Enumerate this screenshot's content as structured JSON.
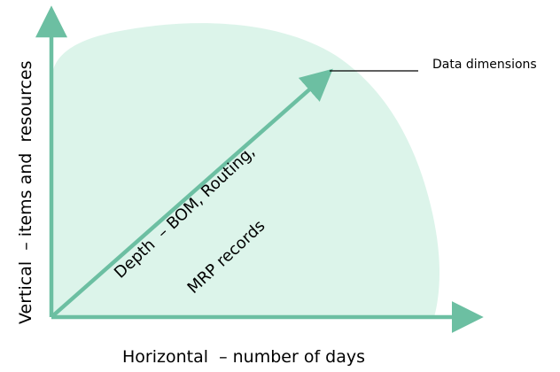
{
  "diagram": {
    "y_axis_label": "Vertical  – items and  resources",
    "x_axis_label": "Horizontal  – number of days",
    "callout_label": "Data dimensions",
    "depth_label_line1": "Depth  – BOM, Routing,",
    "depth_label_line2": "MRP records",
    "colors": {
      "axis": "#6cbfa2",
      "region_fill": "#dcf4ea",
      "callout_line": "#000000",
      "text": "#000000"
    }
  }
}
